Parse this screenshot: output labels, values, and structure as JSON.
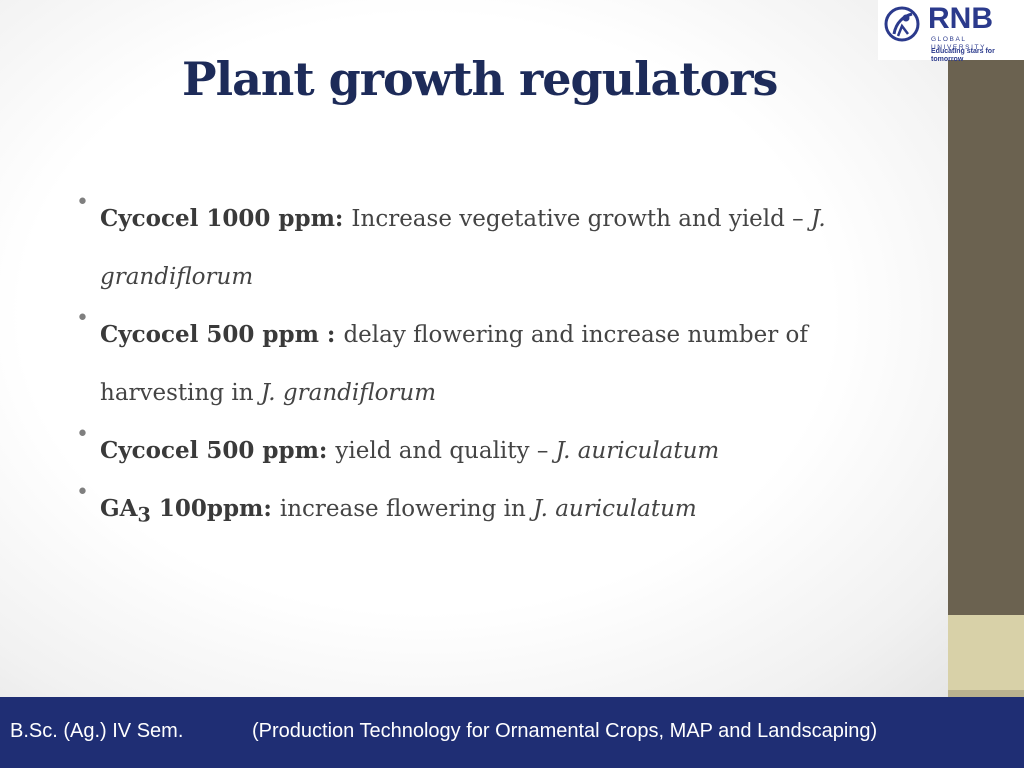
{
  "logo": {
    "name": "RNB",
    "subtitle": "GLOBAL UNIVERSITY",
    "tagline": "Educating stars for tomorrow"
  },
  "slide": {
    "title": "Plant growth regulators",
    "bullets": [
      {
        "bold": "Cycocel 1000 ppm",
        "separator": ": ",
        "text": "Increase vegetative growth and yield – ",
        "italic_tail": "J.",
        "line2_italic": "grandiflorum"
      },
      {
        "bold": "Cycocel 500 ppm",
        "separator": " : ",
        "text": "delay flowering and increase number of",
        "line2_text": "harvesting in ",
        "line2_italic": "J. grandiflorum"
      },
      {
        "bold": "Cycocel 500 ppm",
        "separator": ": ",
        "text": "yield and quality   – ",
        "italic_tail": "J. auriculatum"
      },
      {
        "bold_pre": "GA",
        "bold_sub": "3",
        "bold_post": " 100ppm",
        "separator": ": ",
        "text": "increase flowering in ",
        "italic_tail": "J. auriculatum"
      }
    ]
  },
  "footer": {
    "left": "B.Sc. (Ag.) IV Sem.",
    "right": "(Production Technology for Ornamental Crops, MAP and Landscaping)"
  },
  "colors": {
    "title": "#1d2b59",
    "footer_bg": "#1f2e74",
    "side_panel": "#6b6250",
    "side_panel_light": "#d8d1a8",
    "logo": "#2b3a8c"
  }
}
